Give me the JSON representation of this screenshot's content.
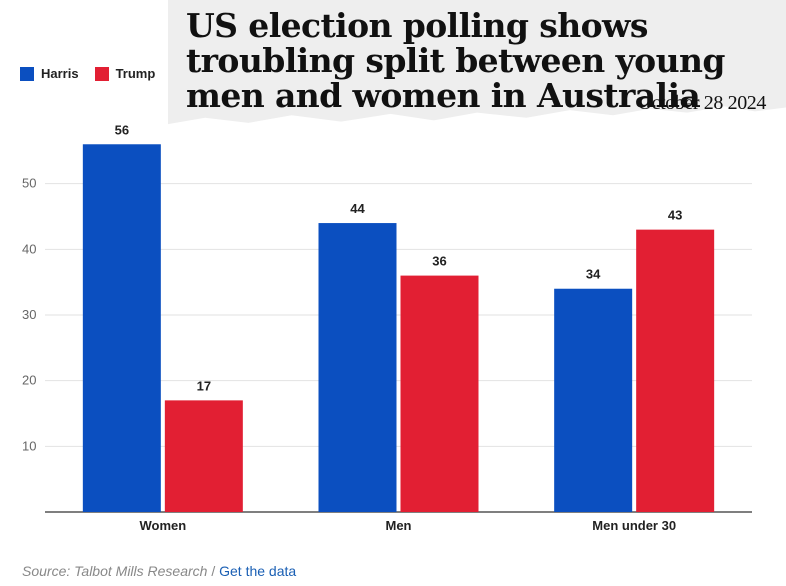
{
  "headline": "US election polling shows troubling split between young men and women in Australia",
  "date": "October 28 2024",
  "source": {
    "label": "Source: Talbot Mills Research",
    "separator": " / ",
    "link_text": "Get the data"
  },
  "colors": {
    "harris": "#0b4fc0",
    "trump": "#e21f33"
  },
  "chart_data": {
    "type": "bar",
    "categories": [
      "Women",
      "Men",
      "Men under 30"
    ],
    "series": [
      {
        "name": "Harris",
        "values": [
          56,
          44,
          34
        ]
      },
      {
        "name": "Trump",
        "values": [
          17,
          36,
          43
        ]
      }
    ],
    "title": "",
    "xlabel": "",
    "ylabel": "",
    "ylim": [
      0,
      60
    ],
    "yticks": [
      10,
      20,
      30,
      40,
      50
    ],
    "grid": true,
    "legend": "top-left"
  }
}
